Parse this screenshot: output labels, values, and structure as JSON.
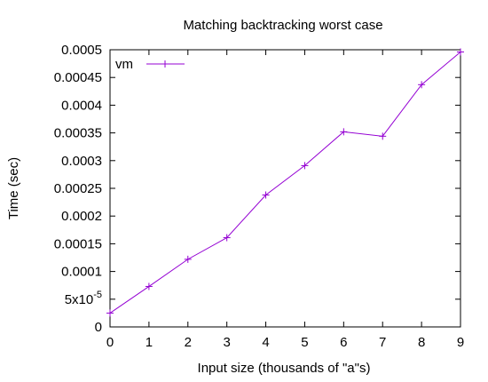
{
  "chart_data": {
    "type": "line",
    "title": "Matching backtracking worst case",
    "xlabel": "Input size (thousands of \"a\"s)",
    "ylabel": "Time (sec)",
    "xlim": [
      0,
      9
    ],
    "ylim": [
      0,
      0.0005
    ],
    "x_ticks": [
      "0",
      "1",
      "2",
      "3",
      "4",
      "5",
      "6",
      "7",
      "8",
      "9"
    ],
    "y_ticks": [
      "0",
      "5x10",
      "0.0001",
      "0.00015",
      "0.0002",
      "0.00025",
      "0.0003",
      "0.00035",
      "0.0004",
      "0.00045",
      "0.0005"
    ],
    "y_tick_values": [
      0,
      5e-05,
      0.0001,
      0.00015,
      0.0002,
      0.00025,
      0.0003,
      0.00035,
      0.0004,
      0.00045,
      0.0005
    ],
    "y_tick_exponent": "-5",
    "grid": false,
    "legend_position": "top-left",
    "series": [
      {
        "name": "vm",
        "color": "#9400d3",
        "marker": "plus",
        "x": [
          0,
          1,
          2,
          3,
          4,
          5,
          6,
          7,
          8,
          9
        ],
        "values": [
          2.5e-05,
          7.3e-05,
          0.000122,
          0.000161,
          0.000238,
          0.000291,
          0.000352,
          0.000344,
          0.000437,
          0.000496
        ]
      }
    ]
  }
}
